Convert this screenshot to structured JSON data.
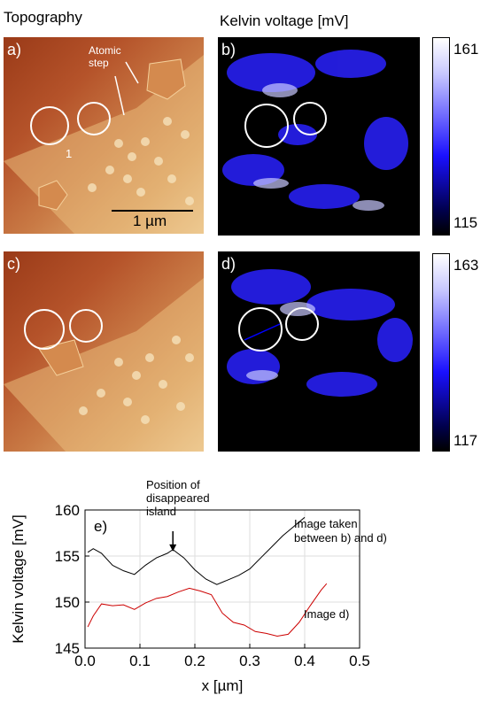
{
  "titles": {
    "left": "Topography",
    "right": "Kelvin voltage [mV]"
  },
  "panels": {
    "a": {
      "label": "a)",
      "annotation": "Atomic\nstep",
      "island_number": "1",
      "scalebar": "1 µm"
    },
    "b": {
      "label": "b)"
    },
    "c": {
      "label": "c)"
    },
    "d": {
      "label": "d)"
    }
  },
  "colorbars": {
    "top": {
      "max": "161",
      "min": "115"
    },
    "bottom": {
      "max": "163",
      "min": "117"
    }
  },
  "colors": {
    "circle": "#ffffff",
    "series1": "#000000",
    "series2": "#cc0000",
    "grid": "#dddddd"
  },
  "chart_data": {
    "type": "line",
    "panel_label": "e)",
    "xlabel": "x [µm]",
    "ylabel": "Kelvin voltage [mV]",
    "xlim": [
      0,
      0.5
    ],
    "ylim": [
      145,
      160
    ],
    "xticks": [
      "0.0",
      "0.1",
      "0.2",
      "0.3",
      "0.4",
      "0.5"
    ],
    "yticks": [
      "145",
      "150",
      "155",
      "160"
    ],
    "grid": true,
    "annotation_arrow": {
      "text": "Position of\ndisappeared\nisland",
      "x": 0.16,
      "y": 155.4
    },
    "series": [
      {
        "name": "Image taken\nbetween b) and d)",
        "color": "#000000",
        "x": [
          0.005,
          0.015,
          0.03,
          0.05,
          0.07,
          0.09,
          0.11,
          0.13,
          0.15,
          0.16,
          0.18,
          0.2,
          0.22,
          0.24,
          0.26,
          0.28,
          0.3,
          0.32,
          0.34,
          0.36,
          0.38,
          0.4
        ],
        "y": [
          155.4,
          155.8,
          155.3,
          154.0,
          153.4,
          153.0,
          154.0,
          154.8,
          155.3,
          155.7,
          154.8,
          153.5,
          152.5,
          151.9,
          152.4,
          152.9,
          153.6,
          154.8,
          156.0,
          157.2,
          158.2,
          159.2
        ]
      },
      {
        "name": "Image d)",
        "color": "#cc0000",
        "x": [
          0.005,
          0.015,
          0.03,
          0.05,
          0.07,
          0.09,
          0.11,
          0.13,
          0.15,
          0.17,
          0.19,
          0.21,
          0.23,
          0.25,
          0.27,
          0.29,
          0.31,
          0.33,
          0.35,
          0.37,
          0.39,
          0.41,
          0.43,
          0.44
        ],
        "y": [
          147.3,
          148.5,
          149.8,
          149.6,
          149.7,
          149.2,
          149.9,
          150.4,
          150.6,
          151.1,
          151.5,
          151.2,
          150.8,
          148.8,
          147.8,
          147.5,
          146.8,
          146.6,
          146.3,
          146.5,
          147.8,
          149.6,
          151.3,
          152.0
        ]
      }
    ]
  }
}
